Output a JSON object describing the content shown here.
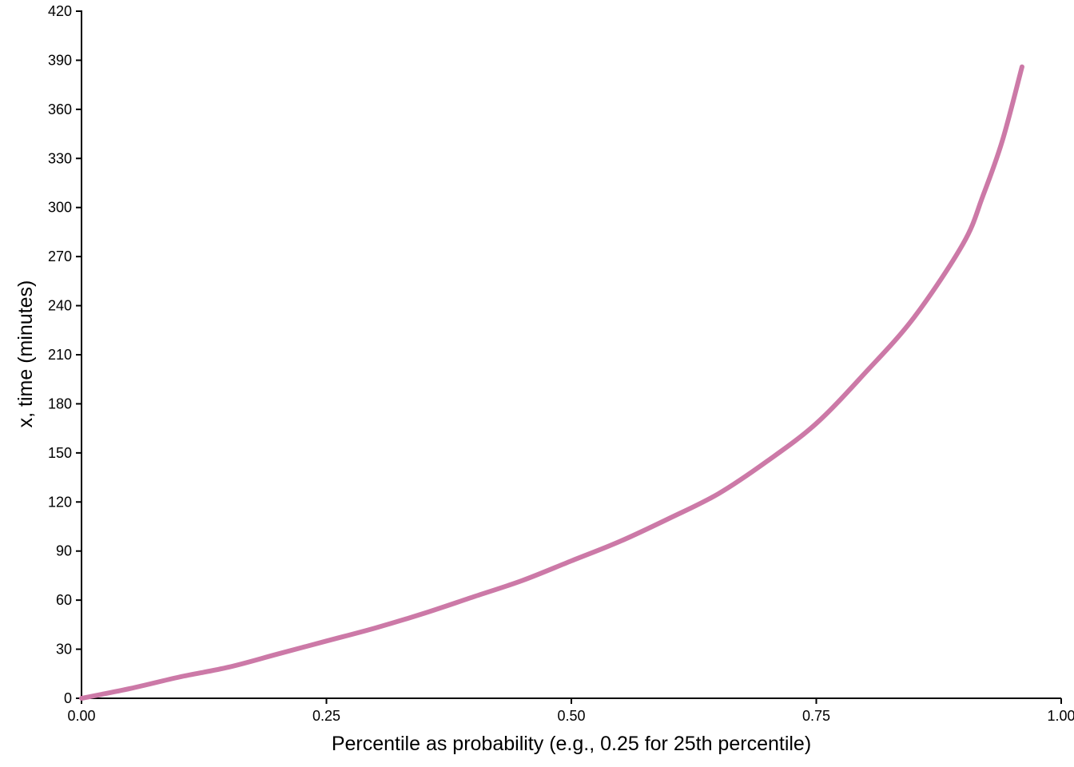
{
  "chart_data": {
    "type": "line",
    "title": "",
    "xlabel": "Percentile as probability (e.g., 0.25 for 25th percentile)",
    "ylabel": "x, time (minutes)",
    "xlim": [
      0,
      1
    ],
    "ylim": [
      0,
      420
    ],
    "x_ticks": [
      "0.00",
      "0.25",
      "0.50",
      "0.75",
      "1.00"
    ],
    "y_ticks": [
      "0",
      "30",
      "60",
      "90",
      "120",
      "150",
      "180",
      "210",
      "240",
      "270",
      "300",
      "330",
      "360",
      "390",
      "420"
    ],
    "grid": false,
    "legend": "none",
    "line_color": "#cc79a7",
    "series": [
      {
        "x": [
          0.0,
          0.05,
          0.1,
          0.15,
          0.2,
          0.25,
          0.3,
          0.35,
          0.4,
          0.45,
          0.5,
          0.55,
          0.6,
          0.65,
          0.7,
          0.75,
          0.8,
          0.85,
          0.9,
          0.92,
          0.94,
          0.96
        ],
        "values": [
          0,
          6,
          13,
          19,
          27,
          35,
          43,
          52,
          62,
          72,
          84,
          96,
          110,
          125,
          145,
          168,
          199,
          233,
          278,
          307,
          341,
          386
        ]
      }
    ]
  }
}
